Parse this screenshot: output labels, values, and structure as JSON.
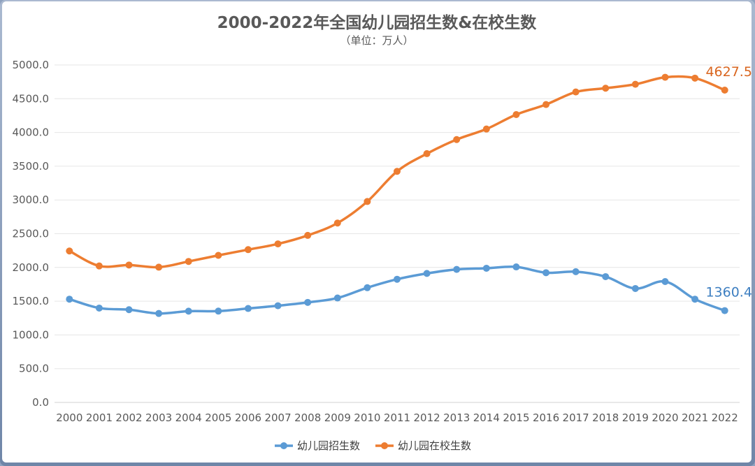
{
  "chart_data": {
    "type": "line",
    "title": "2000-2022年全国幼儿园招生数&在校生数",
    "subtitle": "（单位：万人）",
    "categories": [
      "2000",
      "2001",
      "2002",
      "2003",
      "2004",
      "2005",
      "2006",
      "2007",
      "2008",
      "2009",
      "2010",
      "2011",
      "2012",
      "2013",
      "2014",
      "2015",
      "2016",
      "2017",
      "2018",
      "2019",
      "2020",
      "2021",
      "2022"
    ],
    "ylim": [
      0,
      5000
    ],
    "yticks": [
      "0.0",
      "500.0",
      "1000.0",
      "1500.0",
      "2000.0",
      "2500.0",
      "3000.0",
      "3500.0",
      "4000.0",
      "4500.0",
      "5000.0"
    ],
    "grid": true,
    "legend_position": "bottom",
    "series": [
      {
        "name": "幼儿园招生数",
        "color": "#5b9bd5",
        "label_color": "#3e7fc1",
        "values": [
          1530,
          1398,
          1374,
          1318,
          1352,
          1353,
          1392,
          1433,
          1482,
          1547,
          1700,
          1825,
          1911,
          1971,
          1988,
          2008,
          1922,
          1937,
          1864,
          1688,
          1791,
          1530,
          1360.4
        ],
        "end_label": "1360.4"
      },
      {
        "name": "幼儿园在校生数",
        "color": "#ed7d31",
        "label_color": "#d9651e",
        "values": [
          2244,
          2022,
          2036,
          2004,
          2089,
          2179,
          2264,
          2349,
          2475,
          2658,
          2977,
          3424,
          3686,
          3895,
          4051,
          4265,
          4414,
          4600,
          4656,
          4714,
          4818,
          4805,
          4627.5
        ],
        "end_label": "4627.5"
      }
    ]
  }
}
